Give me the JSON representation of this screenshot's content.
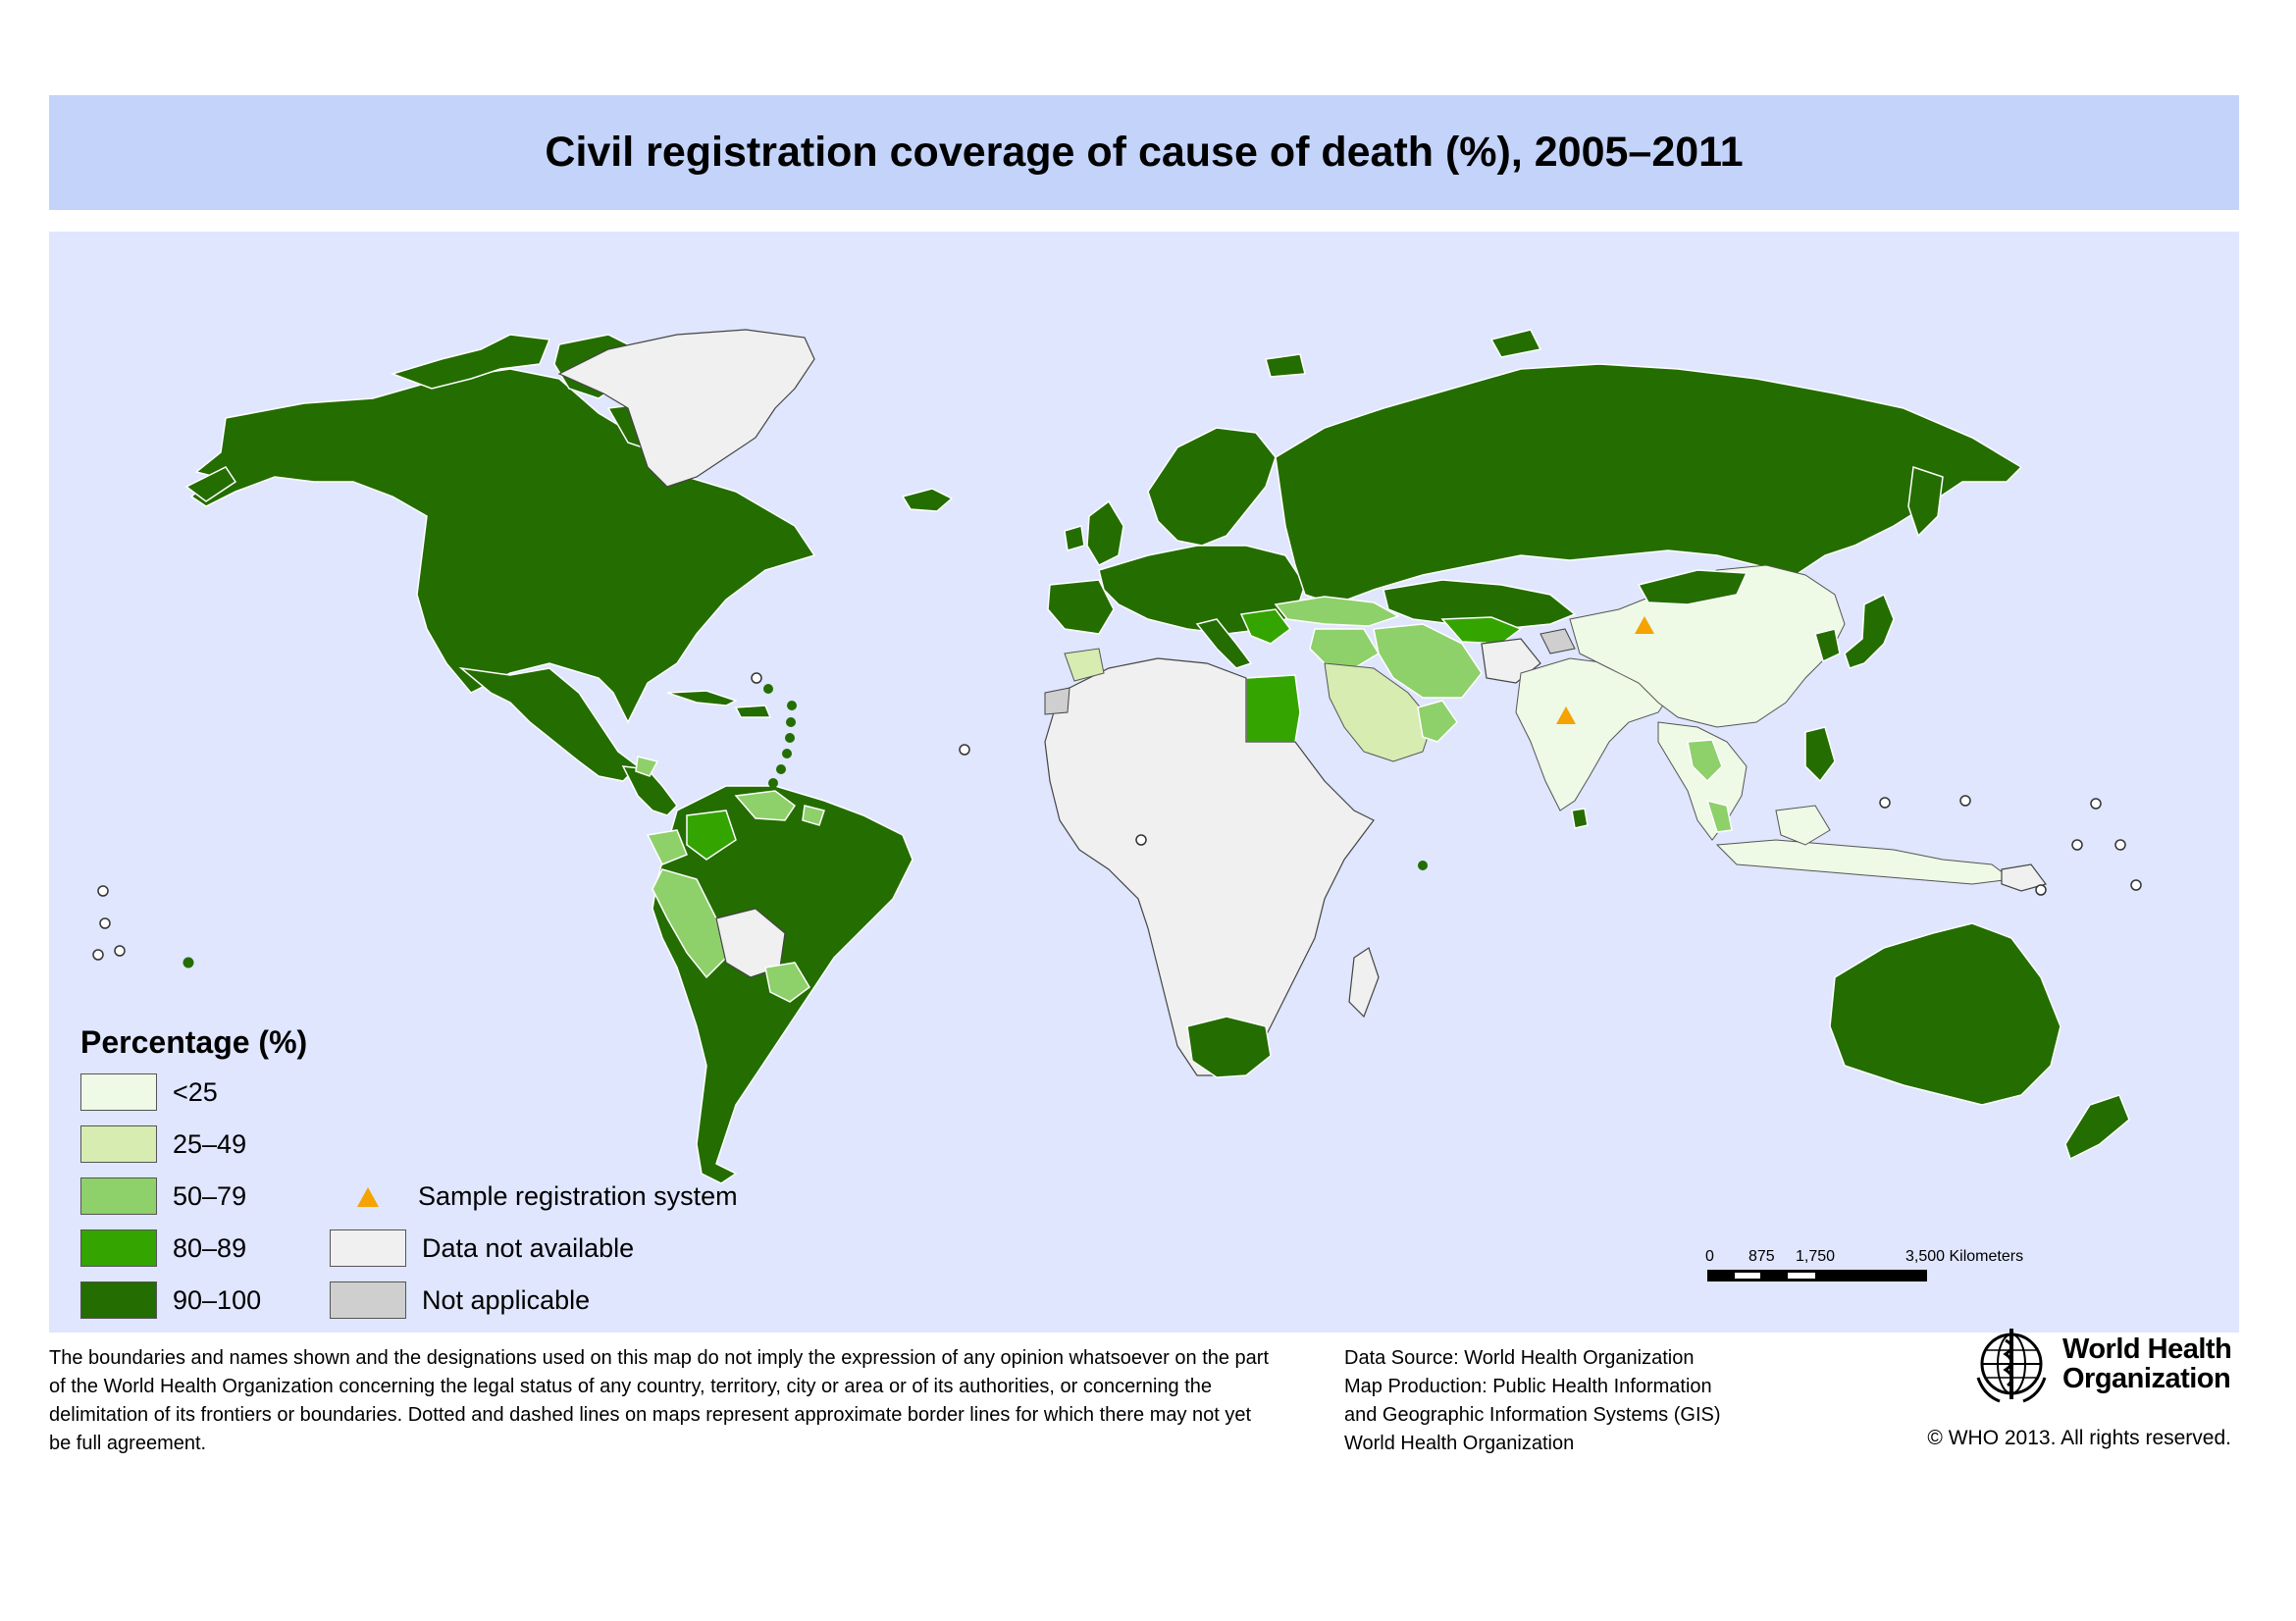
{
  "title": "Civil registration coverage of cause of death (%), 2005–2011",
  "legend": {
    "title": "Percentage (%)",
    "classes": [
      {
        "label": "<25",
        "color": "#eef9e6"
      },
      {
        "label": "25–49",
        "color": "#d7ecb1"
      },
      {
        "label": "50–79",
        "color": "#8ed06a"
      },
      {
        "label": "80–89",
        "color": "#34a400"
      },
      {
        "label": "90–100",
        "color": "#246d00"
      }
    ],
    "symbols": [
      {
        "label": "Sample registration system",
        "icon": "triangle-icon",
        "color": "#f4a300"
      },
      {
        "label": "Data not available",
        "color": "#f0f0f0"
      },
      {
        "label": "Not applicable",
        "color": "#cfcfcf"
      }
    ]
  },
  "scale": {
    "ticks": [
      "0",
      "875",
      "1,750",
      "3,500 Kilometers"
    ]
  },
  "footer": {
    "disclaimer": "The boundaries and names shown and the designations used on this map do not imply the expression of any opinion whatsoever on the part of the World Health Organization concerning the legal status of any country, territory, city or area or of its authorities, or concerning the delimitation of its frontiers or boundaries. Dotted and dashed lines on maps represent approximate border lines for which there may not yet be full agreement.",
    "source_lines": [
      "Data Source: World Health Organization",
      "Map Production: Public Health Information",
      "and Geographic Information Systems (GIS)",
      "World Health Organization"
    ],
    "copyright": "© WHO 2013. All rights reserved.",
    "logo_text_1": "World Health",
    "logo_text_2": "Organization"
  },
  "colors": {
    "title_bar": "#c3d3f9",
    "ocean": "#dfe6fd"
  }
}
